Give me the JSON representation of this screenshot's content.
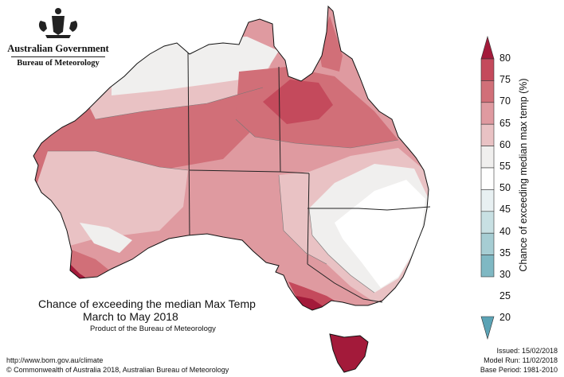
{
  "header": {
    "agency_line1": "Australian Government",
    "agency_line2": "Bureau of Meteorology"
  },
  "map": {
    "title_line1": "Chance of exceeding the median Max Temp",
    "title_line2": "March to May 2018",
    "product_note": "Product of the Bureau of Meteorology",
    "region": "Australia"
  },
  "legend": {
    "title": "Chance of exceeding median max temp (%)",
    "ticks": [
      "80",
      "75",
      "70",
      "65",
      "60",
      "55",
      "50",
      "45",
      "40",
      "35",
      "30",
      "25",
      "20"
    ],
    "colors": {
      "above_75": "#a31a3a",
      "70_75": "#c44a5c",
      "65_70": "#d16f78",
      "60_65": "#df9aa0",
      "55_60": "#e9c2c4",
      "50_55": "#f0efee",
      "45_50": "#ffffff",
      "40_45": "#e8f0f2",
      "35_40": "#c8e0e3",
      "30_35": "#a6cdd3",
      "25_30": "#7fb8c3",
      "below_25": "#5ba3b5"
    }
  },
  "footer": {
    "url": "http://www.bom.gov.au/climate",
    "copyright": "© Commonwealth of Australia 2018, Australian Bureau of Meteorology",
    "issued": "Issued: 15/02/2018",
    "model_run": "Model Run: 11/02/2018",
    "base_period": "Base Period: 1981-2010"
  }
}
